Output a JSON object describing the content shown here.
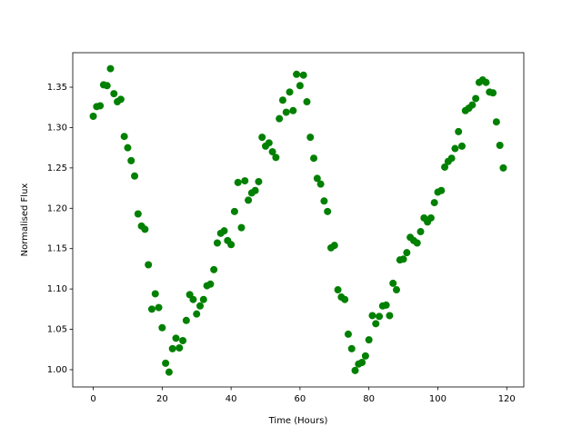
{
  "chart_data": {
    "type": "scatter",
    "x_label": "Time (Hours)",
    "y_label": "Normalised Flux",
    "color": "#008000",
    "x": [
      0,
      1,
      2,
      3,
      4,
      5,
      6,
      7,
      8,
      9,
      10,
      11,
      12,
      13,
      14,
      15,
      16,
      17,
      18,
      19,
      20,
      21,
      22,
      23,
      24,
      25,
      26,
      27,
      28,
      29,
      30,
      31,
      32,
      33,
      34,
      35,
      36,
      37,
      38,
      39,
      40,
      41,
      42,
      43,
      44,
      45,
      46,
      47,
      48,
      49,
      50,
      51,
      52,
      53,
      54,
      55,
      56,
      57,
      58,
      59,
      60,
      61,
      62,
      63,
      64,
      65,
      66,
      67,
      68,
      69,
      70,
      71,
      72,
      73,
      74,
      75,
      76,
      77,
      78,
      79,
      80,
      81,
      82,
      83,
      84,
      85,
      86,
      87,
      88,
      89,
      90,
      91,
      92,
      93,
      94,
      95,
      96,
      97,
      98,
      99,
      100,
      101,
      102,
      103,
      104,
      105,
      106,
      107,
      108,
      109,
      110,
      111,
      112,
      113,
      114,
      115,
      116,
      117,
      118,
      119
    ],
    "values": [
      1.314,
      1.326,
      1.327,
      1.353,
      1.352,
      1.373,
      1.342,
      1.332,
      1.335,
      1.289,
      1.275,
      1.259,
      1.24,
      1.193,
      1.178,
      1.174,
      1.13,
      1.075,
      1.094,
      1.077,
      1.052,
      1.008,
      0.997,
      1.026,
      1.039,
      1.027,
      1.036,
      1.061,
      1.093,
      1.087,
      1.069,
      1.079,
      1.087,
      1.104,
      1.106,
      1.124,
      1.157,
      1.169,
      1.172,
      1.16,
      1.155,
      1.196,
      1.232,
      1.176,
      1.234,
      1.21,
      1.219,
      1.222,
      1.233,
      1.288,
      1.277,
      1.281,
      1.27,
      1.263,
      1.311,
      1.334,
      1.319,
      1.344,
      1.321,
      1.366,
      1.352,
      1.365,
      1.332,
      1.288,
      1.262,
      1.237,
      1.23,
      1.209,
      1.196,
      1.151,
      1.154,
      1.099,
      1.09,
      1.087,
      1.044,
      1.026,
      0.999,
      1.007,
      1.009,
      1.017,
      1.037,
      1.067,
      1.057,
      1.066,
      1.079,
      1.08,
      1.067,
      1.107,
      1.099,
      1.136,
      1.137,
      1.145,
      1.164,
      1.16,
      1.157,
      1.171,
      1.188,
      1.183,
      1.188,
      1.207,
      1.22,
      1.222,
      1.251,
      1.258,
      1.262,
      1.274,
      1.295,
      1.277,
      1.321,
      1.324,
      1.328,
      1.336,
      1.356,
      1.359,
      1.356,
      1.344,
      1.343,
      1.307,
      1.278,
      1.25
    ],
    "xlim": [
      -5.95,
      124.95
    ],
    "ylim": [
      0.9786,
      1.3928
    ],
    "xticks": [
      0,
      20,
      40,
      60,
      80,
      100,
      120
    ],
    "yticks": [
      {
        "value": 1,
        "label": "1.00"
      },
      1.05,
      {
        "value": 1.1,
        "label": "1.10"
      },
      1.15,
      {
        "value": 1.2,
        "label": "1.20"
      },
      1.25,
      {
        "value": 1.3,
        "label": "1.30"
      },
      1.35
    ]
  }
}
